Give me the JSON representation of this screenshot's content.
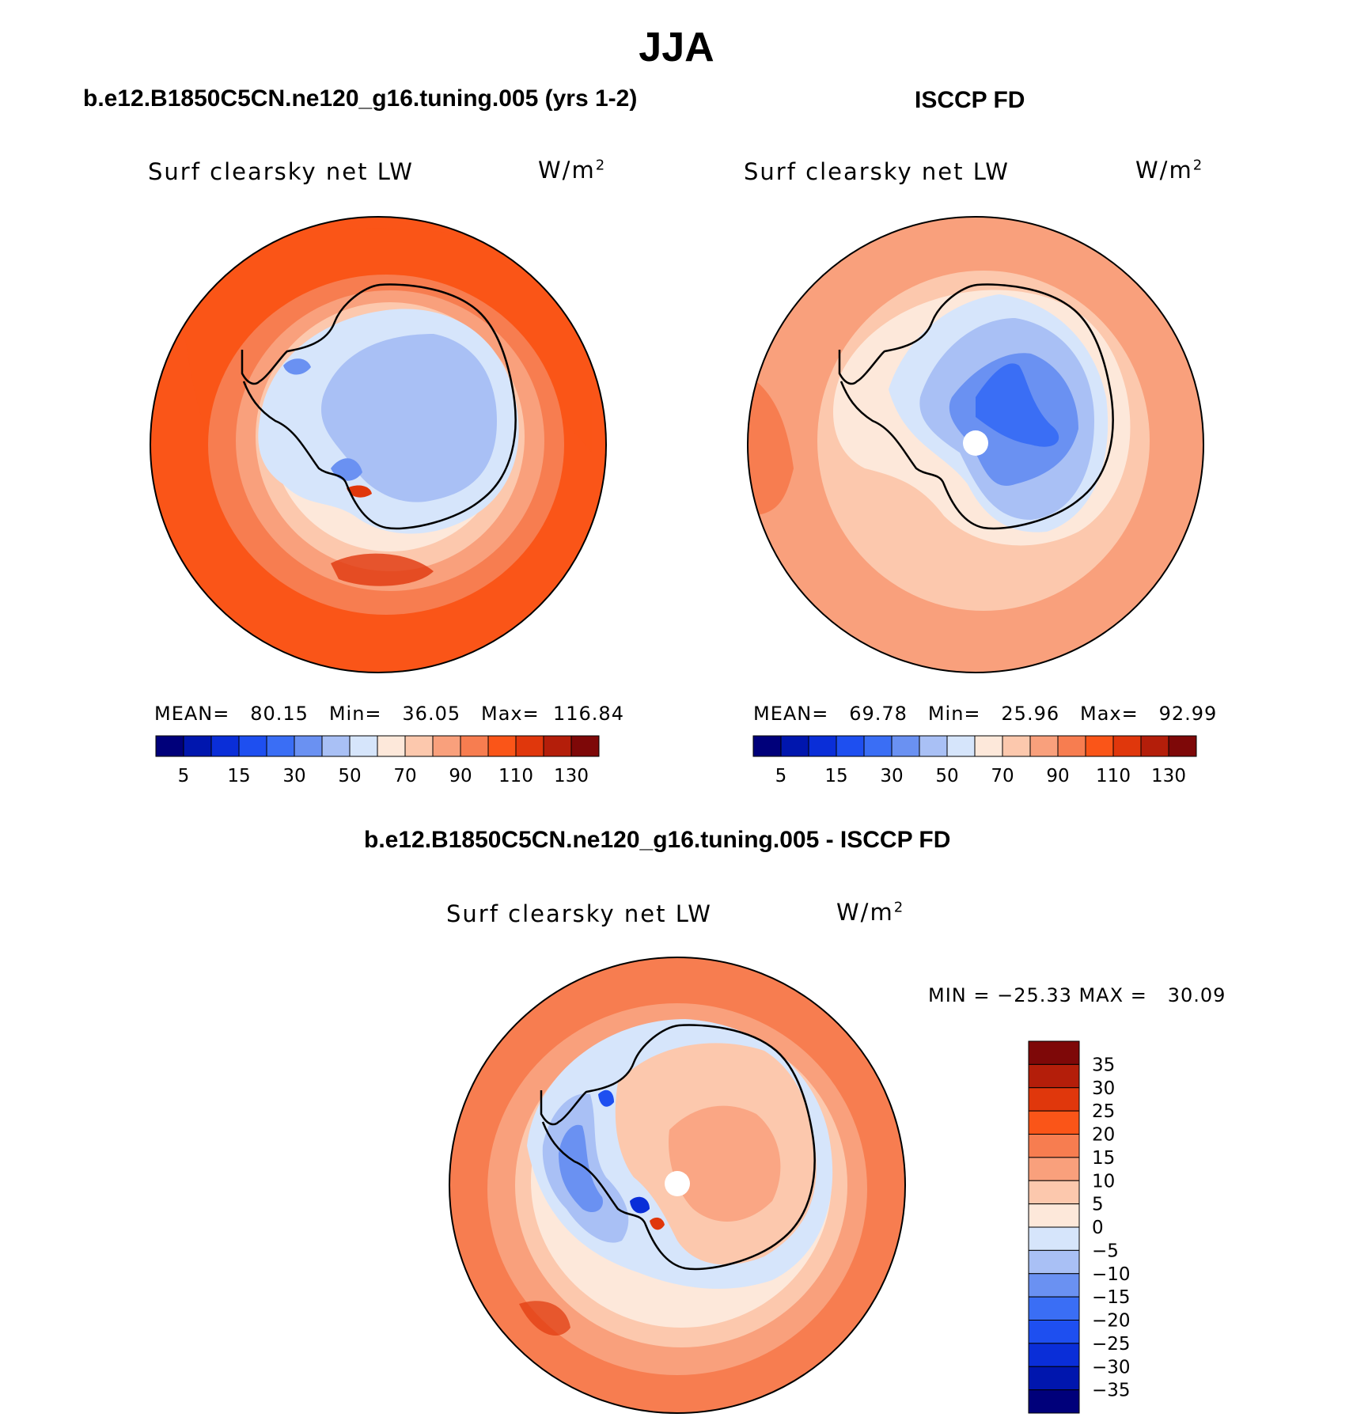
{
  "page": {
    "title": "JJA",
    "diff_title": "b.e12.B1850C5CN.ne120_g16.tuning.005 - ISCCP FD"
  },
  "panels": {
    "model": {
      "title": "b.e12.B1850C5CN.ne120_g16.tuning.005 (yrs 1-2)",
      "variable": "Surf clearsky net LW",
      "units_base": "W/m",
      "units_exp": "2",
      "stats_line": "MEAN=   80.15   Min=   36.05   Max=  116.84"
    },
    "obs": {
      "title": "ISCCP FD",
      "variable": "Surf clearsky net LW",
      "units_base": "W/m",
      "units_exp": "2",
      "stats_line": "MEAN=   69.78   Min=   25.96   Max=   92.99"
    },
    "diff": {
      "variable": "Surf clearsky net LW",
      "units_base": "W/m",
      "units_exp": "2",
      "stats_line": "MIN = −25.33 MAX =   30.09"
    }
  },
  "chart_data": [
    {
      "type": "heatmap",
      "name": "model",
      "title": "b.e12.B1850C5CN.ne120_g16.tuning.005 (yrs 1-2)",
      "variable": "Surf clearsky net LW",
      "units": "W/m2",
      "projection": "south-polar stereographic",
      "mean": 80.15,
      "min": 36.05,
      "max": 116.84,
      "contour_levels": [
        0,
        5,
        10,
        15,
        20,
        30,
        40,
        50,
        60,
        70,
        80,
        90,
        100,
        110,
        120,
        130,
        140
      ],
      "tick_labels": [
        "5",
        "15",
        "30",
        "50",
        "70",
        "90",
        "110",
        "130"
      ],
      "colors": [
        "#00007a",
        "#0016ae",
        "#0a2ed8",
        "#1e4ff0",
        "#3a6ef5",
        "#6a91f2",
        "#a9c0f5",
        "#d6e5fb",
        "#fde8da",
        "#fcc8ad",
        "#f9a07c",
        "#f77d50",
        "#fa5518",
        "#e0370c",
        "#b41e0a",
        "#7e0808"
      ]
    },
    {
      "type": "heatmap",
      "name": "obs",
      "title": "ISCCP FD",
      "variable": "Surf clearsky net LW",
      "units": "W/m2",
      "projection": "south-polar stereographic",
      "mean": 69.78,
      "min": 25.96,
      "max": 92.99,
      "contour_levels": [
        0,
        5,
        10,
        15,
        20,
        30,
        40,
        50,
        60,
        70,
        80,
        90,
        100,
        110,
        120,
        130,
        140
      ],
      "tick_labels": [
        "5",
        "15",
        "30",
        "50",
        "70",
        "90",
        "110",
        "130"
      ],
      "colors": [
        "#00007a",
        "#0016ae",
        "#0a2ed8",
        "#1e4ff0",
        "#3a6ef5",
        "#6a91f2",
        "#a9c0f5",
        "#d6e5fb",
        "#fde8da",
        "#fcc8ad",
        "#f9a07c",
        "#f77d50",
        "#fa5518",
        "#e0370c",
        "#b41e0a",
        "#7e0808"
      ]
    },
    {
      "type": "heatmap",
      "name": "difference",
      "title": "b.e12.B1850C5CN.ne120_g16.tuning.005 - ISCCP FD",
      "variable": "Surf clearsky net LW",
      "units": "W/m2",
      "projection": "south-polar stereographic",
      "min": -25.33,
      "max": 30.09,
      "tick_labels": [
        "35",
        "30",
        "25",
        "20",
        "15",
        "10",
        "5",
        "0",
        "−5",
        "−10",
        "−15",
        "−20",
        "−25",
        "−30",
        "−35"
      ],
      "colors": [
        "#7e0808",
        "#b41e0a",
        "#e0370c",
        "#fa5518",
        "#f77d50",
        "#f9a07c",
        "#fcc8ad",
        "#fde8da",
        "#d6e5fb",
        "#a9c0f5",
        "#6a91f2",
        "#3a6ef5",
        "#1e4ff0",
        "#0a2ed8",
        "#0016ae",
        "#00007a"
      ]
    }
  ]
}
